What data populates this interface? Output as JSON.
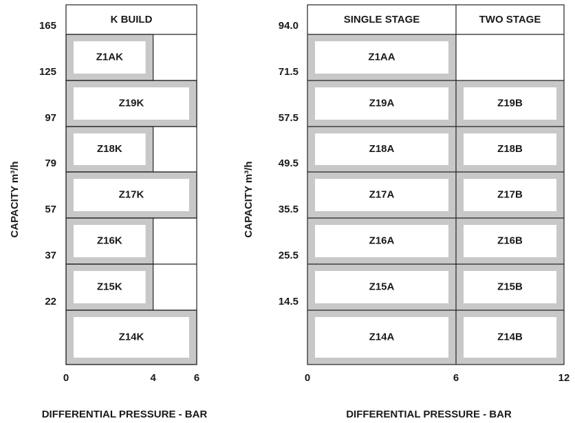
{
  "left": {
    "header": "K BUILD",
    "y_label": "CAPACITY m³/h",
    "x_label": "DIFFERENTIAL PRESSURE - BAR",
    "y_ticks": [
      "165",
      "125",
      "97",
      "79",
      "57",
      "37",
      "22"
    ],
    "x_ticks": [
      0,
      4,
      6
    ],
    "rows": [
      {
        "label": "Z1AK",
        "to": 4
      },
      {
        "label": "Z19K",
        "to": 6
      },
      {
        "label": "Z18K",
        "to": 4
      },
      {
        "label": "Z17K",
        "to": 6
      },
      {
        "label": "Z16K",
        "to": 4
      },
      {
        "label": "Z15K",
        "to": 4
      },
      {
        "label": "Z14K",
        "to": 6
      }
    ]
  },
  "right": {
    "headers": [
      "SINGLE STAGE",
      "TWO STAGE"
    ],
    "y_label": "CAPACITY m³/h",
    "x_label": "DIFFERENTIAL PRESSURE - BAR",
    "y_ticks": [
      "94.0",
      "71.5",
      "57.5",
      "49.5",
      "35.5",
      "25.5",
      "14.5"
    ],
    "x_ticks": [
      0,
      6,
      12
    ],
    "rows": [
      [
        "Z1AA",
        null
      ],
      [
        "Z19A",
        "Z19B"
      ],
      [
        "Z18A",
        "Z18B"
      ],
      [
        "Z17A",
        "Z17B"
      ],
      [
        "Z16A",
        "Z16B"
      ],
      [
        "Z15A",
        "Z15B"
      ],
      [
        "Z14A",
        "Z14B"
      ]
    ]
  }
}
